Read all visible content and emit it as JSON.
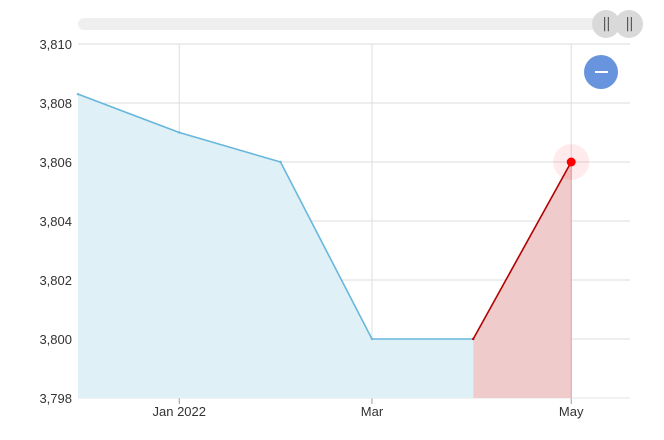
{
  "chart_data": {
    "type": "area",
    "title": "",
    "xlabel": "",
    "ylabel": "",
    "x": [
      "2021-12-01",
      "2022-01-01",
      "2022-02-01",
      "2022-03-01",
      "2022-04-01",
      "2022-05-01"
    ],
    "x_tick_labels": [
      {
        "date": "2022-01-01",
        "label": "Jan 2022"
      },
      {
        "date": "2022-03-01",
        "label": "Mar"
      },
      {
        "date": "2022-05-01",
        "label": "May"
      }
    ],
    "ylim": [
      3798,
      3810
    ],
    "y_ticks": [
      3798,
      3800,
      3802,
      3804,
      3806,
      3808,
      3810
    ],
    "y_tick_labels": [
      "3,798",
      "3,800",
      "3,802",
      "3,804",
      "3,806",
      "3,808",
      "3,810"
    ],
    "series": [
      {
        "values": [
          3808.3,
          3807.0,
          3806.0,
          3800.0,
          3800.0
        ],
        "x": [
          "2021-12-01",
          "2022-01-01",
          "2022-02-01",
          "2022-03-01",
          "2022-04-01"
        ],
        "line_color": "#67b7dc",
        "fill_color": "#e0f0f7"
      },
      {
        "values": [
          3800.0,
          3806.0
        ],
        "x": [
          "2022-04-01",
          "2022-05-01"
        ],
        "line_color": "#b30000",
        "fill_color": "#f0cbcc"
      }
    ],
    "highlight_point": {
      "x": "2022-05-01",
      "y": 3806.0,
      "color": "#ff0000"
    },
    "grid": true
  },
  "controls": {
    "scroll_grip_icon": "vertical-bars-icon",
    "scroll_grip_glyph": "||",
    "zoom_out_icon": "minus-icon"
  }
}
